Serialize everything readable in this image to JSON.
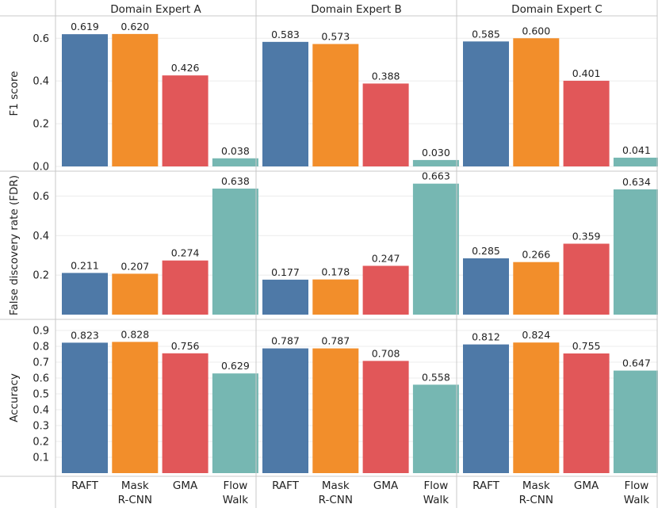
{
  "chart_data": {
    "type": "bar",
    "columns": [
      "Domain Expert A",
      "Domain Expert B",
      "Domain Expert C"
    ],
    "categories": [
      "RAFT",
      "Mask\nR-CNN",
      "GMA",
      "Flow\nWalk"
    ],
    "colors": [
      "#4e79a7",
      "#f28e2b",
      "#e15759",
      "#76b7b2"
    ],
    "rows": [
      {
        "ylabel": "F1 score",
        "ylim": [
          0,
          0.69
        ],
        "ticks": [
          "0.0",
          "0.2",
          "0.4",
          "0.6"
        ],
        "values": [
          [
            0.619,
            0.62,
            0.426,
            0.038
          ],
          [
            0.583,
            0.573,
            0.388,
            0.03
          ],
          [
            0.585,
            0.6,
            0.401,
            0.041
          ]
        ],
        "labels": [
          [
            "0.619",
            "0.620",
            "0.426",
            "0.038"
          ],
          [
            "0.583",
            "0.573",
            "0.388",
            "0.030"
          ],
          [
            "0.585",
            "0.600",
            "0.401",
            "0.041"
          ]
        ]
      },
      {
        "ylabel": "False discovery rate (FDR)",
        "ylim": [
          0,
          0.71
        ],
        "ticks": [
          "0.2",
          "0.4",
          "0.6"
        ],
        "values": [
          [
            0.211,
            0.207,
            0.274,
            0.638
          ],
          [
            0.177,
            0.178,
            0.247,
            0.663
          ],
          [
            0.285,
            0.266,
            0.359,
            0.634
          ]
        ],
        "labels": [
          [
            "0.211",
            "0.207",
            "0.274",
            "0.638"
          ],
          [
            "0.177",
            "0.178",
            "0.247",
            "0.663"
          ],
          [
            "0.285",
            "0.266",
            "0.359",
            "0.634"
          ]
        ]
      },
      {
        "ylabel": "Accuracy",
        "ylim": [
          0,
          0.95
        ],
        "ticks": [
          "0.1",
          "0.2",
          "0.3",
          "0.4",
          "0.5",
          "0.6",
          "0.7",
          "0.8",
          "0.9"
        ],
        "values": [
          [
            0.823,
            0.828,
            0.756,
            0.629
          ],
          [
            0.787,
            0.787,
            0.708,
            0.558
          ],
          [
            0.812,
            0.824,
            0.755,
            0.647
          ]
        ],
        "labels": [
          [
            "0.823",
            "0.828",
            "0.756",
            "0.629"
          ],
          [
            "0.787",
            "0.787",
            "0.708",
            "0.558"
          ],
          [
            "0.812",
            "0.824",
            "0.755",
            "0.647"
          ]
        ]
      }
    ]
  }
}
